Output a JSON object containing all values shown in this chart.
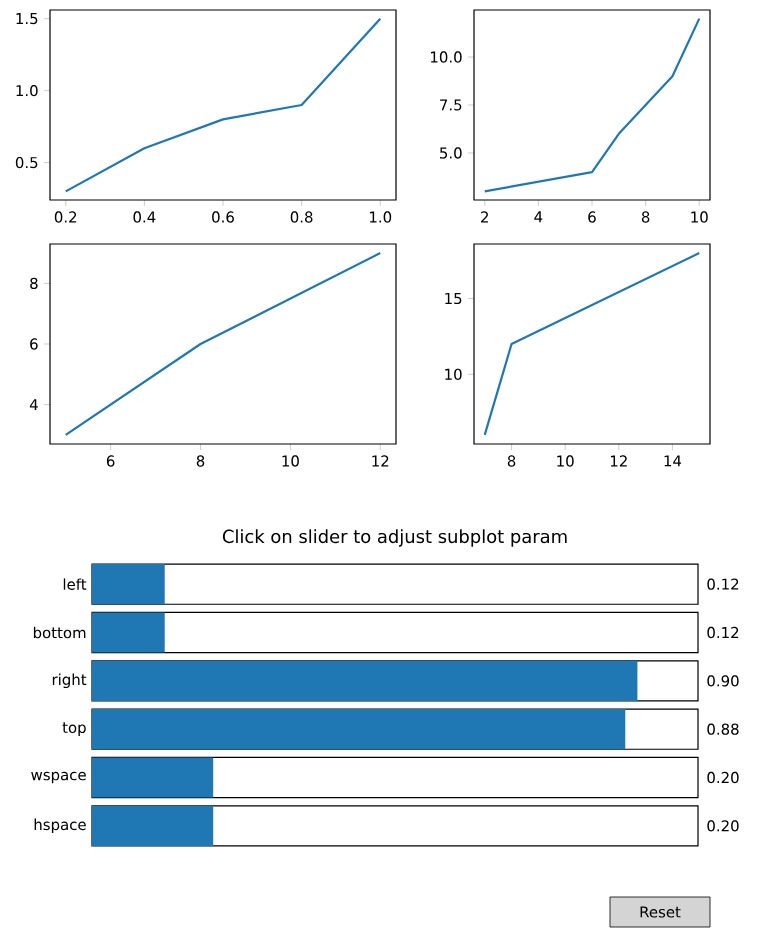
{
  "chart_data": [
    {
      "type": "line",
      "x": [
        0.2,
        0.4,
        0.6,
        0.8,
        1.0
      ],
      "values": [
        0.3,
        0.6,
        0.8,
        0.9,
        1.5
      ],
      "color": "#1f77b4",
      "xlim": [
        0.16,
        1.04
      ],
      "ylim": [
        0.24,
        1.56
      ],
      "xticks": [
        0.2,
        0.4,
        0.6,
        0.8,
        {
          "value": 1,
          "label": "1.0"
        }
      ],
      "yticks": [
        0.5,
        {
          "value": 1,
          "label": "1.0"
        },
        1.5
      ]
    },
    {
      "type": "line",
      "x": [
        2,
        6,
        7,
        9,
        10
      ],
      "values": [
        3,
        4,
        6,
        9,
        12
      ],
      "color": "#1f77b4",
      "xlim": [
        1.6,
        10.4
      ],
      "ylim": [
        2.55,
        12.45
      ],
      "xticks": [
        2,
        4,
        6,
        8,
        10
      ],
      "yticks": [
        {
          "value": 5,
          "label": "5.0"
        },
        7.5,
        {
          "value": 10,
          "label": "10.0"
        }
      ]
    },
    {
      "type": "line",
      "x": [
        5,
        8,
        12
      ],
      "values": [
        3,
        6,
        9
      ],
      "color": "#1f77b4",
      "xlim": [
        4.65,
        12.35
      ],
      "ylim": [
        2.7,
        9.3
      ],
      "xticks": [
        6,
        8,
        10,
        12
      ],
      "yticks": [
        4,
        6,
        8
      ]
    },
    {
      "type": "line",
      "x": [
        7,
        8,
        15
      ],
      "values": [
        6,
        12,
        18
      ],
      "color": "#1f77b4",
      "xlim": [
        6.6,
        15.4
      ],
      "ylim": [
        5.4,
        18.6
      ],
      "xticks": [
        8,
        10,
        12,
        14
      ],
      "yticks": [
        10,
        15
      ]
    },
    {
      "type": "bar",
      "orientation": "horizontal",
      "title": "Click on slider to adjust subplot param",
      "categories": [
        "left",
        "bottom",
        "right",
        "top",
        "wspace",
        "hspace"
      ],
      "values": [
        0.12,
        0.12,
        0.9,
        0.88,
        0.2,
        0.2
      ],
      "value_labels": [
        "0.12",
        "0.12",
        "0.90",
        "0.88",
        "0.20",
        "0.20"
      ],
      "color": "#1f77b4",
      "xlim": [
        0,
        1
      ],
      "tick_labels": "y",
      "annotations": [
        "Reset"
      ]
    }
  ]
}
